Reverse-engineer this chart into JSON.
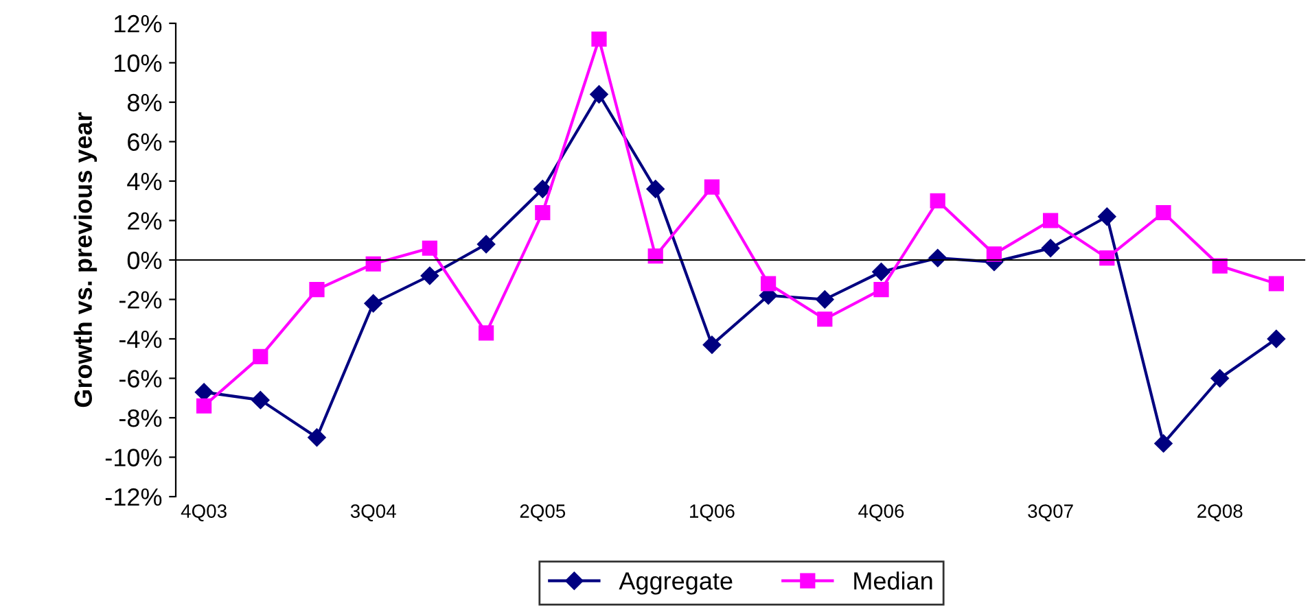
{
  "chart_data": {
    "type": "line",
    "ylabel": "Growth vs. previous year",
    "categories": [
      "4Q03",
      null,
      null,
      "3Q04",
      null,
      null,
      "2Q05",
      null,
      null,
      "1Q06",
      null,
      null,
      "4Q06",
      null,
      null,
      "3Q07",
      null,
      null,
      "2Q08",
      null
    ],
    "series": [
      {
        "name": "Aggregate",
        "color": "#000080",
        "marker": "diamond",
        "values": [
          -6.7,
          -7.1,
          -9.0,
          -2.2,
          -0.8,
          0.8,
          3.6,
          8.4,
          3.6,
          -4.3,
          -1.8,
          -2.0,
          -0.6,
          0.1,
          -0.1,
          0.6,
          2.2,
          -9.3,
          -6.0,
          -4.0
        ]
      },
      {
        "name": "Median",
        "color": "#ff00ff",
        "marker": "square",
        "values": [
          -7.4,
          -4.9,
          -1.5,
          -0.2,
          0.6,
          -3.7,
          2.4,
          11.2,
          0.2,
          3.7,
          -1.2,
          -3.0,
          -1.5,
          3.0,
          0.3,
          2.0,
          0.1,
          2.4,
          -0.3,
          -1.2
        ]
      }
    ],
    "ylim": [
      -12,
      12
    ],
    "yticks": [
      {
        "value": -12,
        "label": "-12%"
      },
      {
        "value": -10,
        "label": "-10%"
      },
      {
        "value": -8,
        "label": "-8%"
      },
      {
        "value": -6,
        "label": "-6%"
      },
      {
        "value": -4,
        "label": "-4%"
      },
      {
        "value": -2,
        "label": "-2%"
      },
      {
        "value": 0,
        "label": "0%"
      },
      {
        "value": 2,
        "label": "2%"
      },
      {
        "value": 4,
        "label": "4%"
      },
      {
        "value": 6,
        "label": "6%"
      },
      {
        "value": 8,
        "label": "8%"
      },
      {
        "value": 10,
        "label": "10%"
      },
      {
        "value": 12,
        "label": "12%"
      }
    ],
    "legend": "bottom",
    "line_style": "solid"
  }
}
